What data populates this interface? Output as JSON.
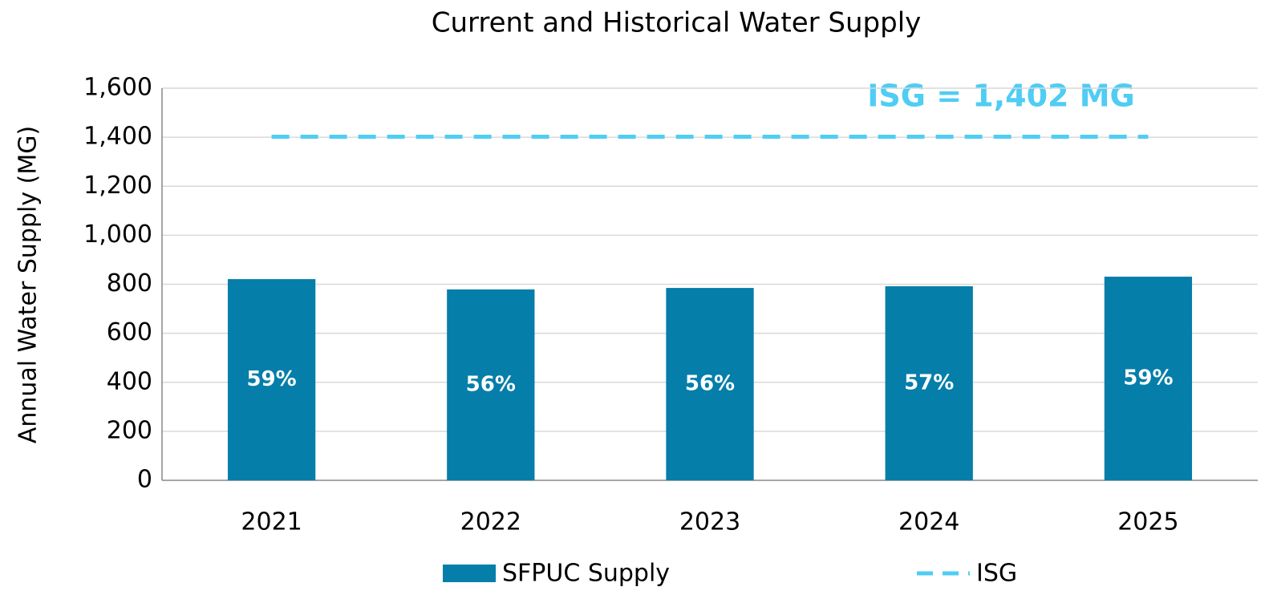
{
  "chart_data": {
    "type": "bar",
    "title": "Current and Historical Water Supply",
    "y_label": "Annual Water Supply (MG)",
    "annotation": "ISG = 1,402 MG",
    "categories": [
      "2021",
      "2022",
      "2023",
      "2024",
      "2025"
    ],
    "series": [
      {
        "name": "SFPUC Supply",
        "type": "bar",
        "color": "#057ea9",
        "values": [
          821,
          779,
          785,
          792,
          831
        ],
        "data_labels": [
          "59%",
          "56%",
          "56%",
          "57%",
          "59%"
        ]
      },
      {
        "name": "ISG",
        "type": "line",
        "dashed": true,
        "color": "#4fcdf3",
        "values": [
          1402,
          1402,
          1402,
          1402,
          1402
        ]
      }
    ],
    "ylim": [
      0,
      1600
    ],
    "yticks": [
      0,
      200,
      400,
      600,
      800,
      {
        "value": 1000,
        "label": "1,000"
      },
      {
        "value": 1200,
        "label": "1,200"
      },
      {
        "value": 1400,
        "label": "1,400"
      },
      {
        "value": 1600,
        "label": "1,600"
      }
    ],
    "grid": true,
    "legend": "bottom"
  }
}
